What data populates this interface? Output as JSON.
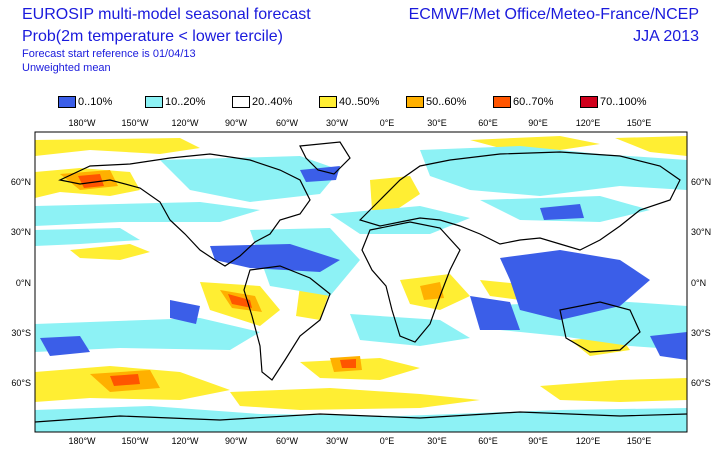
{
  "header": {
    "title": "EUROSIP multi-model seasonal forecast",
    "subtitle": "Prob(2m temperature < lower tercile)",
    "start_ref": "Forecast start reference is 01/04/13",
    "method": "Unweighted mean",
    "centres": "ECMWF/Met Office/Meteo-France/NCEP",
    "season": "JJA 2013"
  },
  "legend": [
    {
      "label": "0..10%",
      "color": "#3b5ee8"
    },
    {
      "label": "10..20%",
      "color": "#8df2f5"
    },
    {
      "label": "20..40%",
      "color": "#ffffff"
    },
    {
      "label": "40..50%",
      "color": "#ffee33"
    },
    {
      "label": "50..60%",
      "color": "#ffb000"
    },
    {
      "label": "60..70%",
      "color": "#ff5500"
    },
    {
      "label": "70..100%",
      "color": "#d0001c"
    }
  ],
  "axes": {
    "lon_labels": [
      "180°W",
      "150°W",
      "120°W",
      "90°W",
      "60°W",
      "30°W",
      "0°E",
      "30°E",
      "60°E",
      "90°E",
      "120°E",
      "150°E"
    ],
    "lat_labels": [
      "60°N",
      "30°N",
      "0°N",
      "30°S",
      "60°S"
    ]
  }
}
